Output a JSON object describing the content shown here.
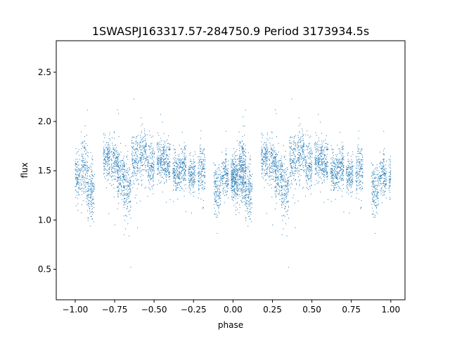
{
  "chart_data": {
    "type": "scatter",
    "title": "1SWASPJ163317.57-284750.9 Period 3173934.5s",
    "xlabel": "phase",
    "ylabel": "flux",
    "xlim": [
      -1.12,
      1.09
    ],
    "ylim": [
      0.19,
      2.82
    ],
    "xticks": [
      -1.0,
      -0.75,
      -0.5,
      -0.25,
      0.0,
      0.25,
      0.5,
      0.75,
      1.0
    ],
    "xtick_labels": [
      "−1.00",
      "−0.75",
      "−0.50",
      "−0.25",
      "0.00",
      "0.25",
      "0.50",
      "0.75",
      "1.00"
    ],
    "yticks": [
      0.5,
      1.0,
      1.5,
      2.0,
      2.5
    ],
    "ytick_labels": [
      "0.5",
      "1.0",
      "1.5",
      "2.0",
      "2.5"
    ],
    "grid": false,
    "legend": "none",
    "marker_color": "#1f77b4",
    "series": [
      {
        "x_range": [
          -1.0,
          1.0
        ],
        "mirror_period": 1.0,
        "clusters": [
          {
            "phase": -0.99,
            "flux": 1.45,
            "spread": 0.14
          },
          {
            "phase": -0.94,
            "flux": 1.52,
            "spread": 0.22
          },
          {
            "phase": -0.9,
            "flux": 1.3,
            "spread": 0.2
          },
          {
            "phase": -0.8,
            "flux": 1.62,
            "spread": 0.16
          },
          {
            "phase": -0.75,
            "flux": 1.58,
            "spread": 0.15
          },
          {
            "phase": -0.71,
            "flux": 1.45,
            "spread": 0.18
          },
          {
            "phase": -0.67,
            "flux": 1.3,
            "spread": 0.22
          },
          {
            "phase": -0.62,
            "flux": 1.62,
            "spread": 0.17
          },
          {
            "phase": -0.57,
            "flux": 1.66,
            "spread": 0.18
          },
          {
            "phase": -0.52,
            "flux": 1.55,
            "spread": 0.16
          },
          {
            "phase": -0.46,
            "flux": 1.62,
            "spread": 0.15
          },
          {
            "phase": -0.42,
            "flux": 1.58,
            "spread": 0.14
          },
          {
            "phase": -0.36,
            "flux": 1.5,
            "spread": 0.14
          },
          {
            "phase": -0.32,
            "flux": 1.52,
            "spread": 0.14
          },
          {
            "phase": -0.26,
            "flux": 1.46,
            "spread": 0.12
          },
          {
            "phase": -0.2,
            "flux": 1.5,
            "spread": 0.17
          },
          {
            "phase": -0.1,
            "flux": 1.32,
            "spread": 0.17
          },
          {
            "phase": -0.05,
            "flux": 1.45,
            "spread": 0.14
          },
          {
            "phase": 0.01,
            "flux": 1.4,
            "spread": 0.16
          },
          {
            "phase": 0.06,
            "flux": 1.48,
            "spread": 0.2
          }
        ]
      }
    ]
  }
}
